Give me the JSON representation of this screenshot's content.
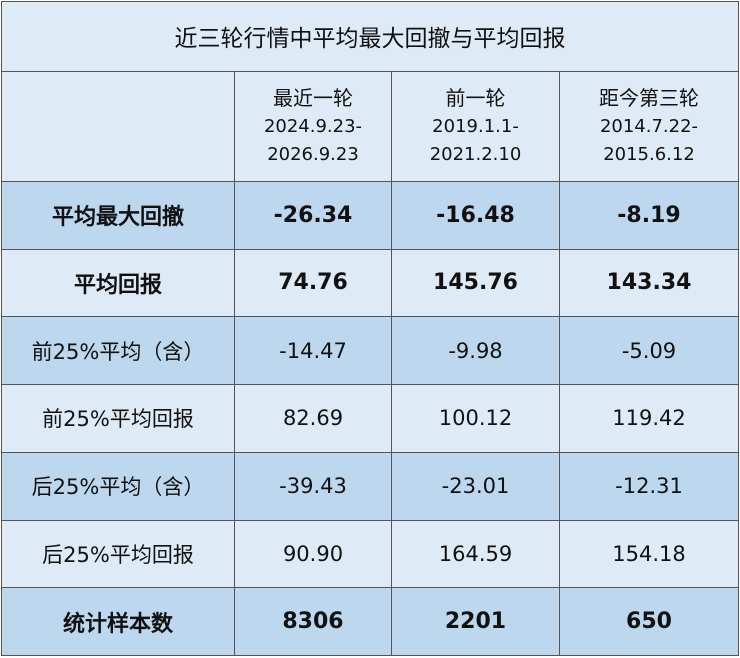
{
  "table": {
    "title": "近三轮行情中平均最大回撤与平均回报",
    "columns": [
      {
        "name": "最近一轮",
        "period_start": "2024.9.23-",
        "period_end": "2026.9.23"
      },
      {
        "name": "前一轮",
        "period_start": "2019.1.1-",
        "period_end": "2021.2.10"
      },
      {
        "name": "距今第三轮",
        "period_start": "2014.7.22-",
        "period_end": "2015.6.12"
      }
    ],
    "rows": [
      {
        "label": "平均最大回撤",
        "bold": true,
        "values": [
          "-26.34",
          "-16.48",
          "-8.19"
        ]
      },
      {
        "label": "平均回报",
        "bold": true,
        "values": [
          "74.76",
          "145.76",
          "143.34"
        ]
      },
      {
        "label": "前25%平均（含）",
        "bold": false,
        "values": [
          "-14.47",
          "-9.98",
          "-5.09"
        ]
      },
      {
        "label": "前25%平均回报",
        "bold": false,
        "values": [
          "82.69",
          "100.12",
          "119.42"
        ]
      },
      {
        "label": "后25%平均（含）",
        "bold": false,
        "values": [
          "-39.43",
          "-23.01",
          "-12.31"
        ]
      },
      {
        "label": "后25%平均回报",
        "bold": false,
        "values": [
          "90.90",
          "164.59",
          "154.18"
        ]
      },
      {
        "label": "统计样本数",
        "bold": true,
        "values": [
          "8306",
          "2201",
          "650"
        ]
      }
    ]
  }
}
